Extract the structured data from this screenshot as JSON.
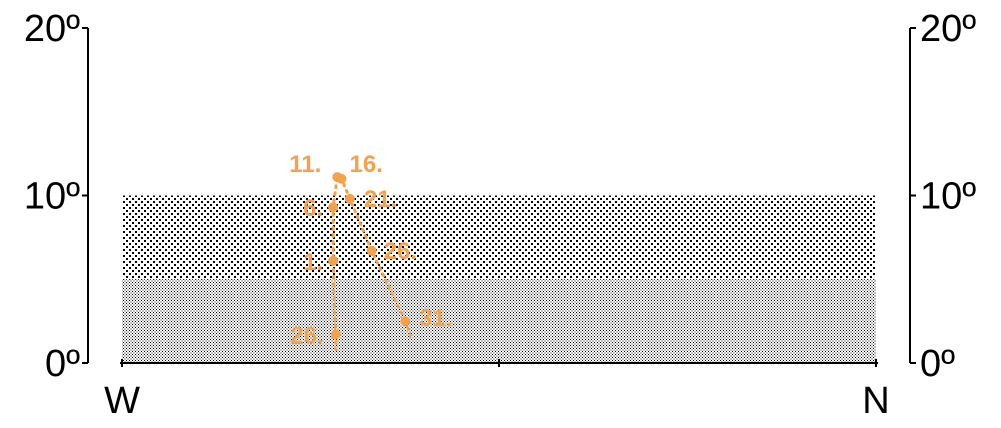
{
  "chart_data": {
    "type": "scatter",
    "title": "",
    "xlabel": "",
    "ylabel": "",
    "x_labels": [
      "W",
      "N"
    ],
    "xlim": [
      270,
      360
    ],
    "y_ticks": [
      "0º",
      "10º",
      "20º"
    ],
    "ylim": [
      0,
      20
    ],
    "zones": [
      {
        "name": "",
        "from": 0,
        "to": 5,
        "pattern": "dense-dots"
      },
      {
        "name": "",
        "from": 5,
        "to": 10,
        "pattern": "sparse-dots"
      }
    ],
    "series": [
      {
        "name": "",
        "color": "#F7A24A",
        "style": "dotted",
        "points": [
          {
            "label": "26.",
            "x": 295.5,
            "y": 1.7
          },
          {
            "label": "1.",
            "x": 295.2,
            "y": 6.1
          },
          {
            "label": "6.",
            "x": 295.2,
            "y": 9.3
          },
          {
            "label": "11.",
            "x": 295.7,
            "y": 11.1
          },
          {
            "label": "16.",
            "x": 296.2,
            "y": 11.0
          },
          {
            "label": "21.",
            "x": 297.2,
            "y": 9.8
          },
          {
            "label": "26.",
            "x": 299.8,
            "y": 6.7
          },
          {
            "label": "31.",
            "x": 303.8,
            "y": 2.5
          }
        ],
        "path_extension": [
          {
            "from": {
              "x": 295.5,
              "y": 1.7
            },
            "to": {
              "x": 295.5,
              "y": 0.8
            }
          },
          {
            "from": {
              "x": 303.8,
              "y": 2.5
            },
            "to": {
              "x": 304.6,
              "y": 1.4
            }
          }
        ]
      }
    ]
  }
}
